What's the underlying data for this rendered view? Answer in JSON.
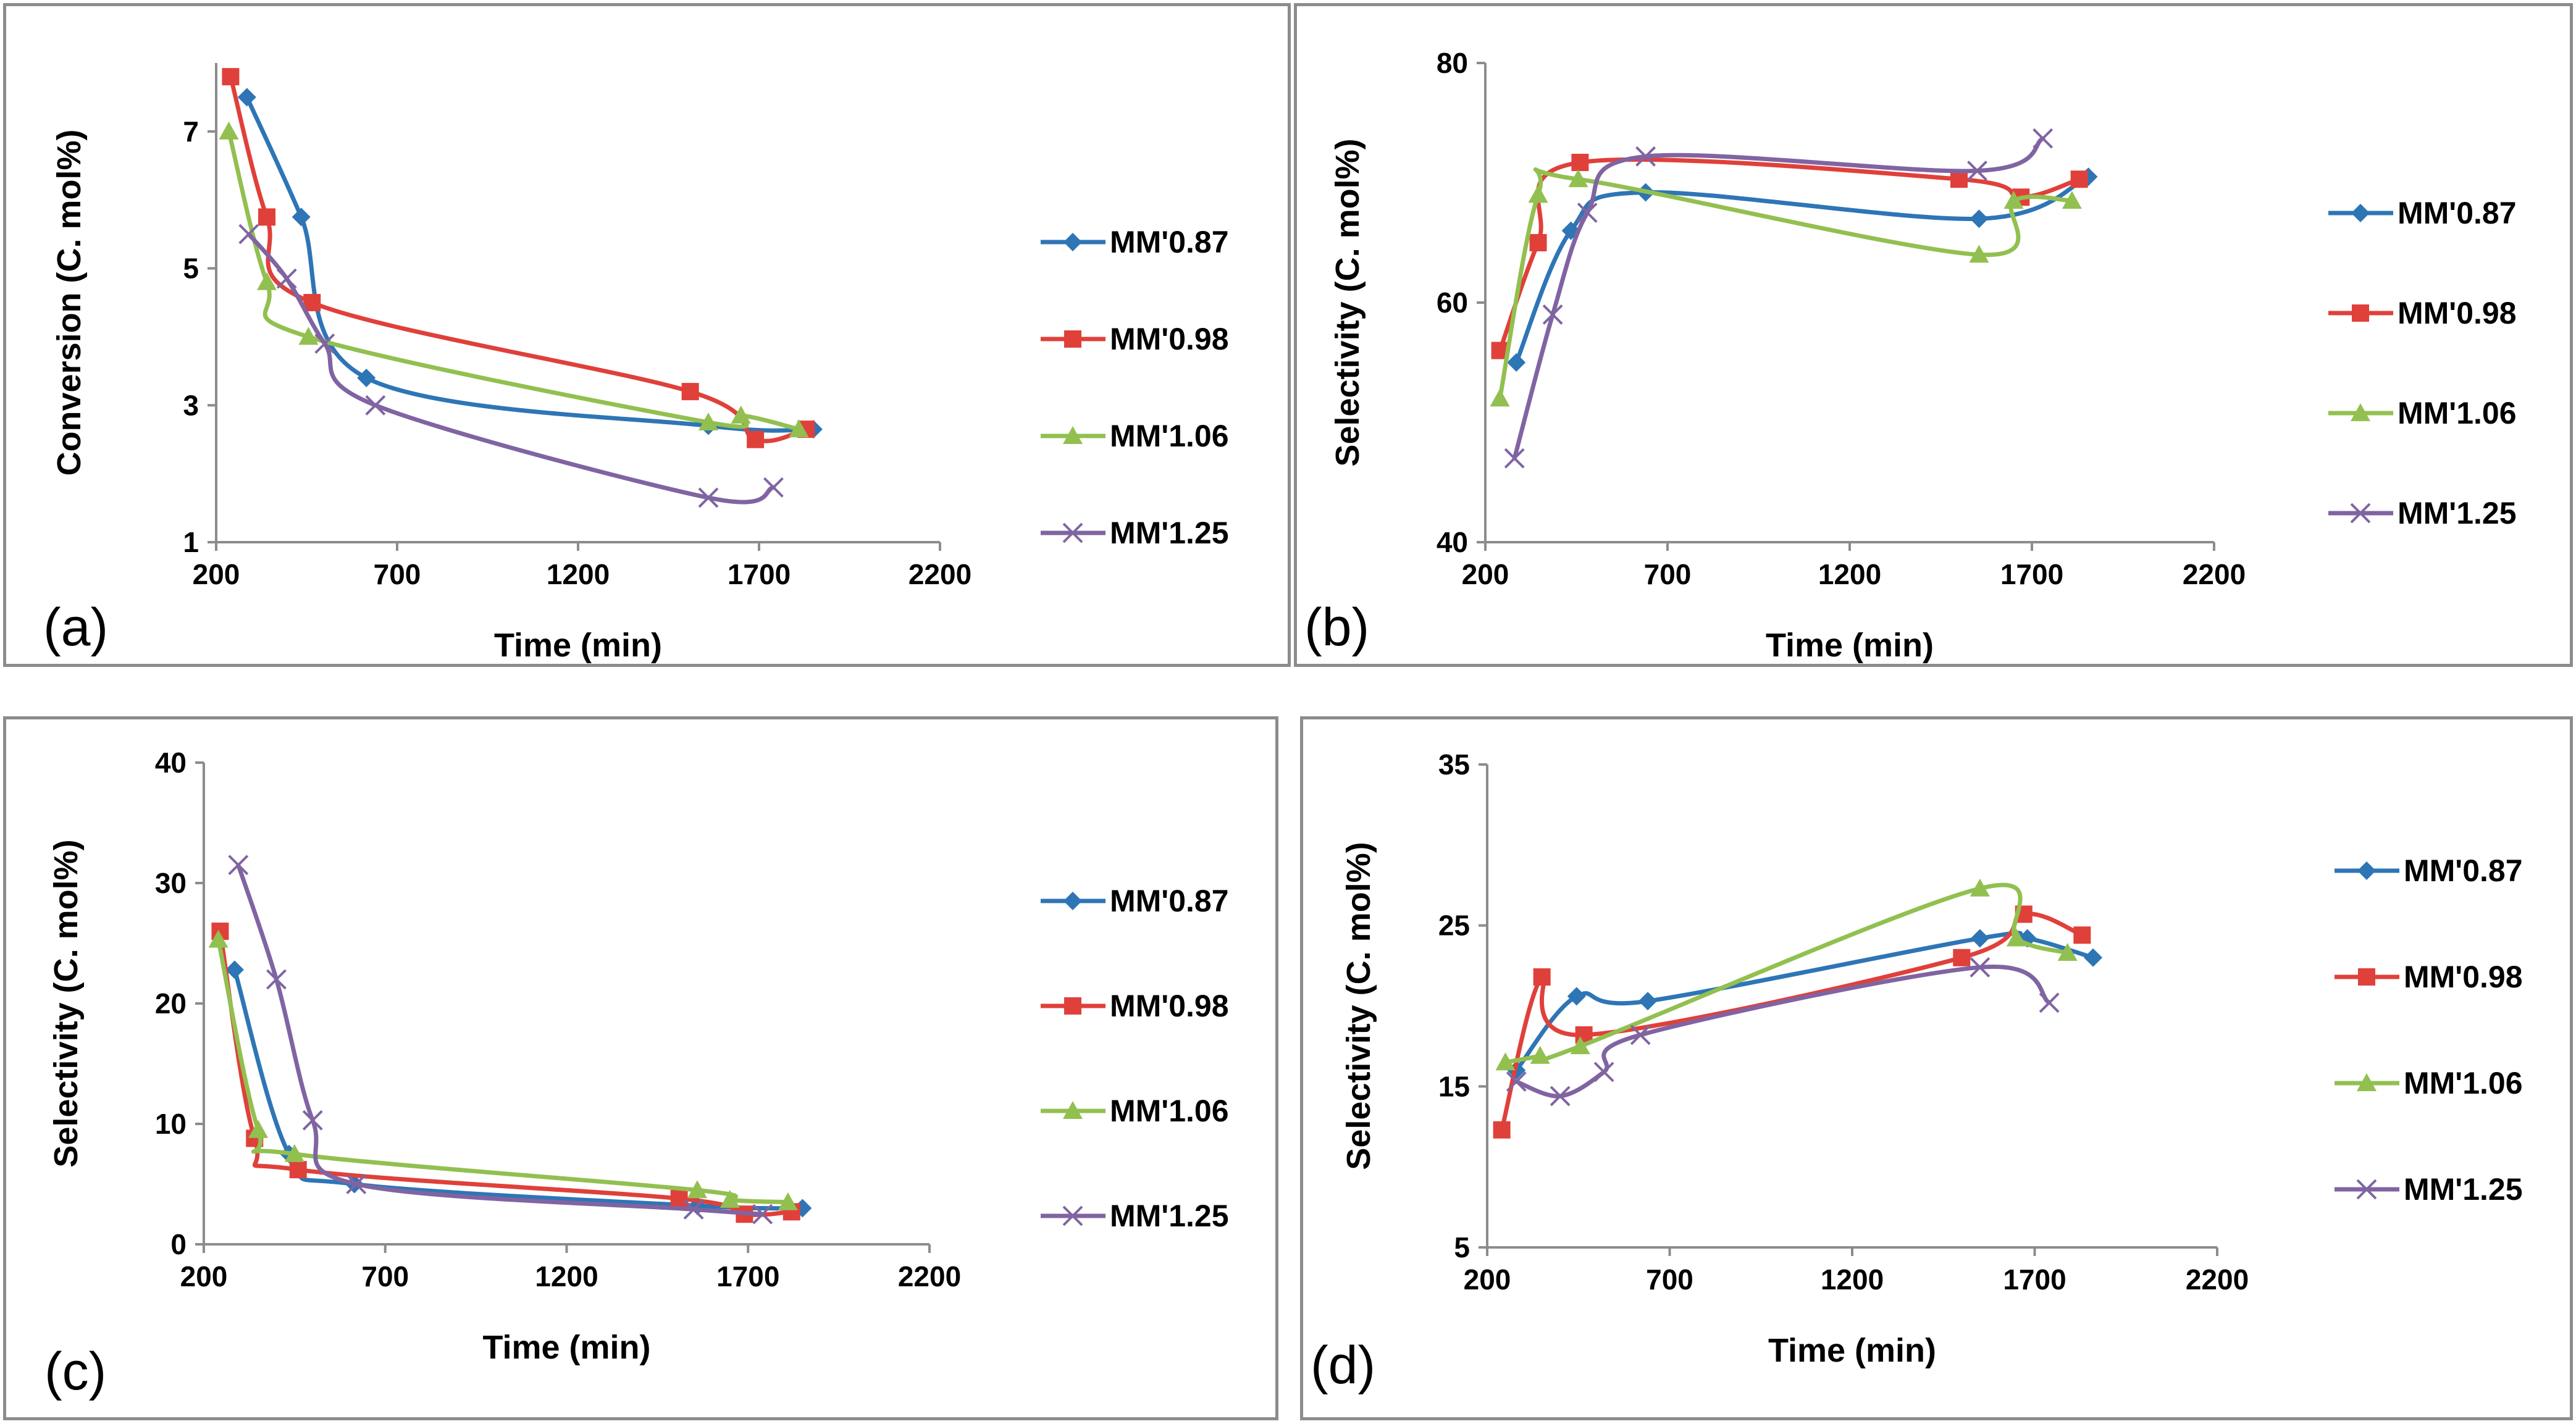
{
  "chart_data": [
    {
      "type": "line",
      "panel_label": "(a)",
      "xlabel": "Time (min)",
      "ylabel": "Conversion (C. mol%)",
      "xlim": [
        200,
        2200
      ],
      "ylim": [
        1,
        8
      ],
      "xticks": [
        "200",
        "700",
        "1200",
        "1700",
        "2200"
      ],
      "yticks": [
        "1",
        "3",
        "5",
        "7"
      ],
      "ytick_values": [
        1,
        3,
        5,
        7
      ],
      "series": [
        {
          "name": "MM'0.87",
          "color": "#2e75b6",
          "marker": "diamond",
          "x": [
            285,
            435,
            615,
            1560,
            1850
          ],
          "y": [
            7.5,
            5.75,
            3.4,
            2.7,
            2.65
          ]
        },
        {
          "name": "MM'0.98",
          "color": "#e0403a",
          "marker": "square",
          "x": [
            240,
            340,
            465,
            1510,
            1690,
            1830
          ],
          "y": [
            7.8,
            5.75,
            4.5,
            3.2,
            2.5,
            2.65
          ]
        },
        {
          "name": "MM'1.06",
          "color": "#92c050",
          "marker": "triangle",
          "x": [
            235,
            340,
            455,
            1560,
            1650,
            1810
          ],
          "y": [
            7.0,
            4.8,
            4.0,
            2.75,
            2.85,
            2.65
          ]
        },
        {
          "name": "MM'1.25",
          "color": "#8064a2",
          "marker": "x",
          "x": [
            290,
            395,
            500,
            640,
            1560,
            1740
          ],
          "y": [
            5.5,
            4.85,
            3.9,
            3.0,
            1.65,
            1.8
          ]
        }
      ]
    },
    {
      "type": "line",
      "panel_label": "(b)",
      "xlabel": "Time (min)",
      "ylabel": "Selectivity (C. mol%)",
      "xlim": [
        200,
        2200
      ],
      "ylim": [
        40,
        80
      ],
      "xticks": [
        "200",
        "700",
        "1200",
        "1700",
        "2200"
      ],
      "yticks": [
        "40",
        "60",
        "80"
      ],
      "ytick_values": [
        40,
        60,
        80
      ],
      "series": [
        {
          "name": "MM'0.87",
          "color": "#2e75b6",
          "marker": "diamond",
          "x": [
            285,
            435,
            640,
            1555,
            1855
          ],
          "y": [
            55,
            66,
            69.2,
            67,
            70.5
          ]
        },
        {
          "name": "MM'0.98",
          "color": "#e0403a",
          "marker": "square",
          "x": [
            240,
            345,
            460,
            1500,
            1670,
            1830
          ],
          "y": [
            56,
            65,
            71.7,
            70.3,
            68.8,
            70.3
          ]
        },
        {
          "name": "MM'1.06",
          "color": "#92c050",
          "marker": "triangle",
          "x": [
            240,
            345,
            455,
            1555,
            1650,
            1810
          ],
          "y": [
            52,
            69,
            70.3,
            64,
            68.5,
            68.5
          ]
        },
        {
          "name": "MM'1.25",
          "color": "#8064a2",
          "marker": "x",
          "x": [
            280,
            385,
            480,
            640,
            1550,
            1730
          ],
          "y": [
            47,
            59,
            67.5,
            72.2,
            71,
            73.7
          ]
        }
      ]
    },
    {
      "type": "line",
      "panel_label": "(c)",
      "xlabel": "Time (min)",
      "ylabel": "Selectivity (C. mol%)",
      "xlim": [
        200,
        2200
      ],
      "ylim": [
        0,
        40
      ],
      "xticks": [
        "200",
        "700",
        "1200",
        "1700",
        "2200"
      ],
      "yticks": [
        "0",
        "10",
        "20",
        "30",
        "40"
      ],
      "ytick_values": [
        0,
        10,
        20,
        30,
        40
      ],
      "series": [
        {
          "name": "MM'0.87",
          "color": "#2e75b6",
          "marker": "diamond",
          "x": [
            285,
            435,
            615,
            1560,
            1850
          ],
          "y": [
            22.8,
            7.5,
            5.0,
            3.2,
            3.0
          ]
        },
        {
          "name": "MM'0.98",
          "color": "#e0403a",
          "marker": "square",
          "x": [
            245,
            340,
            460,
            1510,
            1690,
            1820
          ],
          "y": [
            26,
            8.8,
            6.2,
            3.8,
            2.5,
            2.7
          ]
        },
        {
          "name": "MM'1.06",
          "color": "#92c050",
          "marker": "triangle",
          "x": [
            240,
            350,
            450,
            1560,
            1650,
            1810
          ],
          "y": [
            25.3,
            9.5,
            7.5,
            4.5,
            3.7,
            3.5
          ]
        },
        {
          "name": "MM'1.25",
          "color": "#8064a2",
          "marker": "x",
          "x": [
            295,
            400,
            500,
            620,
            1550,
            1740
          ],
          "y": [
            31.5,
            22,
            10.3,
            5.0,
            2.9,
            2.5
          ]
        }
      ]
    },
    {
      "type": "line",
      "panel_label": "(d)",
      "xlabel": "Time (min)",
      "ylabel": "Selectivity (C. mol%)",
      "xlim": [
        200,
        2200
      ],
      "ylim": [
        5,
        35
      ],
      "xticks": [
        "200",
        "700",
        "1200",
        "1700",
        "2200"
      ],
      "yticks": [
        "5",
        "15",
        "25",
        "35"
      ],
      "ytick_values": [
        5,
        15,
        25,
        35
      ],
      "series": [
        {
          "name": "MM'0.87",
          "color": "#2e75b6",
          "marker": "diamond",
          "x": [
            280,
            445,
            640,
            1550,
            1680,
            1860
          ],
          "y": [
            16,
            20.6,
            20.3,
            24.2,
            24.2,
            23.0
          ]
        },
        {
          "name": "MM'0.98",
          "color": "#e0403a",
          "marker": "square",
          "x": [
            240,
            350,
            465,
            1500,
            1670,
            1830
          ],
          "y": [
            12.3,
            21.8,
            18.2,
            23.0,
            25.7,
            24.4
          ]
        },
        {
          "name": "MM'1.06",
          "color": "#92c050",
          "marker": "triangle",
          "x": [
            250,
            345,
            455,
            1550,
            1650,
            1790
          ],
          "y": [
            16.5,
            16.9,
            17.5,
            27.3,
            24.2,
            23.3
          ]
        },
        {
          "name": "MM'1.25",
          "color": "#8064a2",
          "marker": "x",
          "x": [
            280,
            400,
            520,
            620,
            1550,
            1740
          ],
          "y": [
            15.3,
            14.4,
            15.9,
            18.2,
            22.4,
            20.2
          ]
        }
      ]
    }
  ]
}
